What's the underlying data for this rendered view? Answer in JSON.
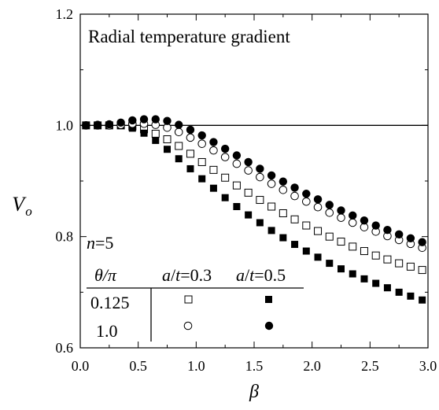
{
  "chart_data": {
    "type": "scatter",
    "title": "Radial temperature gradient",
    "xlabel": "β",
    "ylabel": "V",
    "ylabel_sub": "o",
    "xlim": [
      0.0,
      3.0
    ],
    "ylim": [
      0.6,
      1.2
    ],
    "xticks": [
      "0.0",
      "0.5",
      "1.0",
      "1.5",
      "2.0",
      "2.5",
      "3.0"
    ],
    "xtick_values": [
      0.0,
      0.5,
      1.0,
      1.5,
      2.0,
      2.5,
      3.0
    ],
    "yticks": [
      "0.6",
      "0.8",
      "1.0",
      "1.2"
    ],
    "ytick_values": [
      0.6,
      0.8,
      1.0,
      1.2
    ],
    "reference_line_y": 1.0,
    "x": [
      0.05,
      0.15,
      0.25,
      0.35,
      0.45,
      0.55,
      0.65,
      0.75,
      0.85,
      0.95,
      1.05,
      1.15,
      1.25,
      1.35,
      1.45,
      1.55,
      1.65,
      1.75,
      1.85,
      1.95,
      2.05,
      2.15,
      2.25,
      2.35,
      2.45,
      2.55,
      2.65,
      2.75,
      2.85,
      2.95
    ],
    "series": [
      {
        "theta": "0.125",
        "at": "0.3",
        "marker": "open-square",
        "values": [
          1.0,
          1.0,
          1.0,
          1.0,
          0.998,
          0.993,
          0.985,
          0.975,
          0.963,
          0.949,
          0.934,
          0.92,
          0.906,
          0.892,
          0.879,
          0.866,
          0.854,
          0.842,
          0.831,
          0.82,
          0.81,
          0.8,
          0.791,
          0.782,
          0.774,
          0.766,
          0.759,
          0.752,
          0.746,
          0.74
        ]
      },
      {
        "theta": "0.125",
        "at": "0.5",
        "marker": "filled-square",
        "values": [
          1.0,
          1.0,
          1.0,
          1.0,
          0.995,
          0.986,
          0.973,
          0.957,
          0.94,
          0.922,
          0.904,
          0.887,
          0.87,
          0.854,
          0.839,
          0.825,
          0.811,
          0.798,
          0.786,
          0.774,
          0.763,
          0.752,
          0.742,
          0.733,
          0.724,
          0.716,
          0.708,
          0.7,
          0.693,
          0.686
        ]
      },
      {
        "theta": "1.0",
        "at": "0.3",
        "marker": "open-circle",
        "values": [
          1.0,
          1.0,
          1.0,
          1.001,
          1.003,
          1.003,
          1.001,
          0.996,
          0.988,
          0.978,
          0.967,
          0.955,
          0.943,
          0.931,
          0.919,
          0.907,
          0.895,
          0.884,
          0.873,
          0.863,
          0.853,
          0.843,
          0.834,
          0.825,
          0.817,
          0.809,
          0.801,
          0.794,
          0.787,
          0.78
        ]
      },
      {
        "theta": "1.0",
        "at": "0.5",
        "marker": "filled-circle",
        "values": [
          1.0,
          1.001,
          1.002,
          1.005,
          1.009,
          1.011,
          1.011,
          1.008,
          1.001,
          0.992,
          0.982,
          0.97,
          0.958,
          0.946,
          0.934,
          0.922,
          0.91,
          0.899,
          0.888,
          0.877,
          0.867,
          0.857,
          0.847,
          0.838,
          0.829,
          0.82,
          0.812,
          0.804,
          0.797,
          0.79
        ]
      }
    ],
    "legend": {
      "placement": "bottom-left",
      "n_label": "n",
      "n_value": "=5",
      "theta_header": "θ/π",
      "col1_header": "a/t=0.3",
      "col2_header": "a/t=0.5",
      "a_label": "a",
      "t_label": "t",
      "col1_value": "=0.3",
      "col2_value": "=0.5",
      "row1_label": "0.125",
      "row2_label": "1.0"
    }
  }
}
